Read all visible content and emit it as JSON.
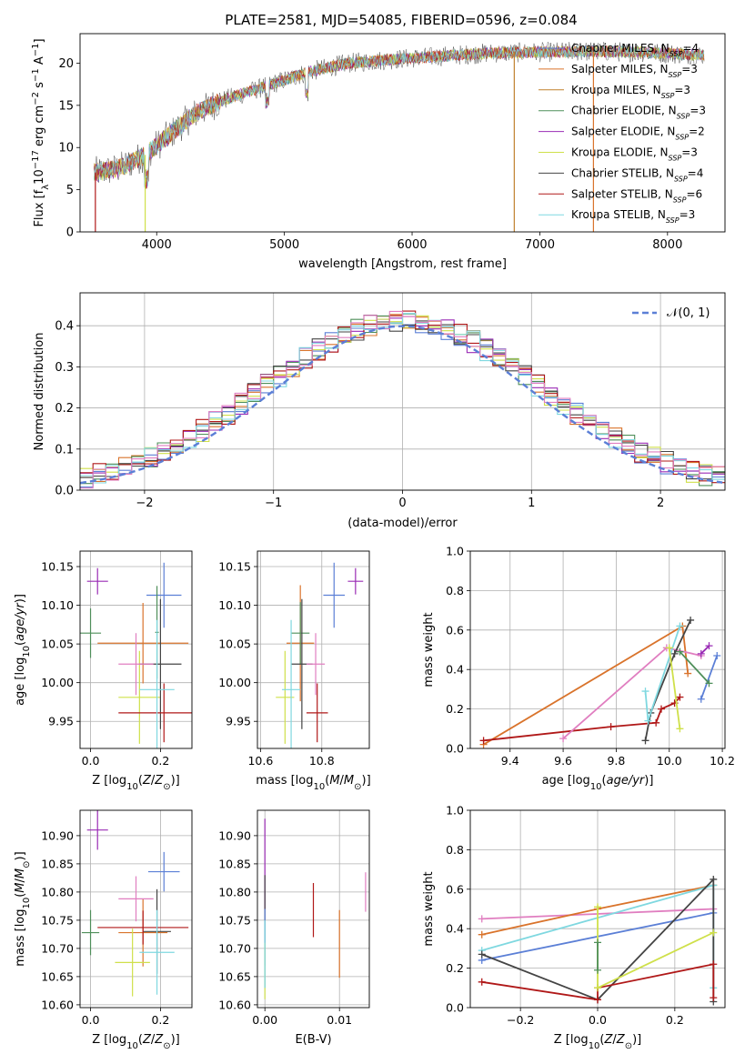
{
  "figure": {
    "title": "PLATE=2581, MJD=54085, FIBERID=0596, z=0.084"
  },
  "models": [
    {
      "label": "Chabrier MILES, N",
      "sub": "SSP",
      "suffix": "=4",
      "color": "#5b7fd6"
    },
    {
      "label": "Salpeter MILES, N",
      "sub": "SSP",
      "suffix": "=3",
      "color": "#d9732b"
    },
    {
      "label": "Kroupa MILES, N",
      "sub": "SSP",
      "suffix": "=3",
      "color": "#c0802c"
    },
    {
      "label": "Chabrier ELODIE, N",
      "sub": "SSP",
      "suffix": "=3",
      "color": "#4f8f5a"
    },
    {
      "label": "Salpeter ELODIE, N",
      "sub": "SSP",
      "suffix": "=2",
      "color": "#9a2bb5"
    },
    {
      "label": "Kroupa ELODIE, N",
      "sub": "SSP",
      "suffix": "=3",
      "color": "#cfe04a"
    },
    {
      "label": "Chabrier STELIB, N",
      "sub": "SSP",
      "suffix": "=4",
      "color": "#444444"
    },
    {
      "label": "Salpeter STELIB, N",
      "sub": "SSP",
      "suffix": "=6",
      "color": "#b01818"
    },
    {
      "label": "Kroupa STELIB, N",
      "sub": "SSP",
      "suffix": "=3",
      "color": "#7fd8e0"
    }
  ],
  "extra_colors": {
    "pink": "#e07ec0",
    "orange": "#e07b1c",
    "gray": "#777777"
  },
  "chart_data": [
    {
      "type": "line",
      "panel": "spectrum",
      "xlabel": "wavelength [Angstrom, rest frame]",
      "ylabel": "Flux [fλ10⁻¹⁷ erg cm⁻² s⁻¹ A⁻¹]",
      "xlim": [
        3400,
        8450
      ],
      "ylim": [
        0,
        23.5
      ],
      "xticks": [
        4000,
        5000,
        6000,
        7000,
        8000
      ],
      "yticks": [
        0,
        5,
        10,
        15,
        20
      ],
      "continuum_nodes": [
        [
          3500,
          7
        ],
        [
          3700,
          7.5
        ],
        [
          3900,
          9
        ],
        [
          4100,
          11.5
        ],
        [
          4300,
          14
        ],
        [
          4500,
          15.5
        ],
        [
          4800,
          17
        ],
        [
          5000,
          18
        ],
        [
          5200,
          19
        ],
        [
          5500,
          20
        ],
        [
          5900,
          20.5
        ],
        [
          6200,
          20.8
        ],
        [
          6600,
          21.2
        ],
        [
          7000,
          21.3
        ],
        [
          7400,
          21.4
        ],
        [
          7800,
          21.3
        ],
        [
          8200,
          21
        ]
      ],
      "vertical_drops": [
        {
          "x": 3520,
          "color_index": 7
        },
        {
          "x": 3910,
          "color_index": 5
        },
        {
          "x": 6800,
          "color_index": 2
        },
        {
          "x": 7420,
          "color_index": 1
        }
      ]
    },
    {
      "type": "histogram",
      "panel": "residuals",
      "xlabel": "(data-model)/error",
      "ylabel": "Normed distribution",
      "xlim": [
        -2.5,
        2.5
      ],
      "ylim": [
        0,
        0.48
      ],
      "xticks": [
        -2,
        -1,
        0,
        1,
        2
      ],
      "yticks": [
        0.0,
        0.1,
        0.2,
        0.3,
        0.4
      ],
      "bin_width": 0.1,
      "reference_curve": {
        "label": "N(0,1)",
        "mean": 0,
        "sigma": 1
      }
    },
    {
      "type": "scatter",
      "panel": "age-vs-Z",
      "xlabel": "Z [log10(Z/Z⊙)]",
      "ylabel": "age [log10(age/yr)]",
      "xlim": [
        -0.03,
        0.29
      ],
      "ylim": [
        9.915,
        10.17
      ],
      "xticks": [
        0.0,
        0.2
      ],
      "yticks": [
        9.95,
        10.0,
        10.05,
        10.1,
        10.15
      ],
      "points": [
        {
          "x": 0.21,
          "y": 10.113,
          "xerr": 0.05,
          "yerr": 0.042,
          "c": 0
        },
        {
          "x": 0.15,
          "y": 10.051,
          "xerr": 0.13,
          "yerr": 0.052,
          "c": 1
        },
        {
          "x": 0.19,
          "y": 10.065,
          "xerr": 0.005,
          "yerr": 0.06,
          "c": 3
        },
        {
          "x": 0.0,
          "y": 10.064,
          "xerr": 0.03,
          "yerr": 0.032,
          "c": 3
        },
        {
          "x": 0.02,
          "y": 10.131,
          "xerr": 0.03,
          "yerr": 0.017,
          "c": 4
        },
        {
          "x": 0.14,
          "y": 9.981,
          "xerr": 0.06,
          "yerr": 0.06,
          "c": 5
        },
        {
          "x": 0.2,
          "y": 10.024,
          "xerr": 0.06,
          "yerr": 0.084,
          "c": 6
        },
        {
          "x": 0.21,
          "y": 9.961,
          "xerr": 0.13,
          "yerr": 0.038,
          "c": 7
        },
        {
          "x": 0.19,
          "y": 9.991,
          "xerr": 0.05,
          "yerr": 0.09,
          "c": 8
        },
        {
          "x": 0.13,
          "y": 10.024,
          "xerr": 0.05,
          "yerr": 0.04,
          "c": 9
        }
      ]
    },
    {
      "type": "scatter",
      "panel": "age-vs-mass",
      "xlabel": "mass [log10(M/M⊙)]",
      "ylabel": "",
      "xlim": [
        10.59,
        10.955
      ],
      "ylim": [
        9.915,
        10.17
      ],
      "xticks": [
        10.6,
        10.8
      ],
      "yticks": [
        9.95,
        10.0,
        10.05,
        10.1,
        10.15
      ],
      "points": [
        {
          "x": 10.84,
          "y": 10.113,
          "xerr": 0.035,
          "yerr": 0.042,
          "c": 0
        },
        {
          "x": 10.73,
          "y": 10.051,
          "xerr": 0.045,
          "yerr": 0.075,
          "c": 1
        },
        {
          "x": 10.73,
          "y": 10.064,
          "xerr": 0.03,
          "yerr": 0.04,
          "c": 3
        },
        {
          "x": 10.91,
          "y": 10.131,
          "xerr": 0.025,
          "yerr": 0.017,
          "c": 4
        },
        {
          "x": 10.68,
          "y": 9.981,
          "xerr": 0.03,
          "yerr": 0.06,
          "c": 5
        },
        {
          "x": 10.735,
          "y": 10.024,
          "xerr": 0.035,
          "yerr": 0.084,
          "c": 6
        },
        {
          "x": 10.785,
          "y": 9.961,
          "xerr": 0.035,
          "yerr": 0.038,
          "c": 7
        },
        {
          "x": 10.7,
          "y": 9.991,
          "xerr": 0.03,
          "yerr": 0.09,
          "c": 8
        },
        {
          "x": 10.78,
          "y": 10.024,
          "xerr": 0.03,
          "yerr": 0.04,
          "c": 9
        }
      ]
    },
    {
      "type": "line",
      "panel": "weight-vs-age",
      "xlabel": "age [log10(age/yr)]",
      "ylabel": "mass weight",
      "xlim": [
        9.25,
        10.21
      ],
      "ylim": [
        0,
        1
      ],
      "xticks": [
        9.4,
        9.6,
        9.8,
        10.0,
        10.2
      ],
      "yticks": [
        0.0,
        0.2,
        0.4,
        0.6,
        0.8,
        1.0
      ],
      "series": [
        {
          "c": 1,
          "points": [
            [
              9.3,
              0.02
            ],
            [
              10.05,
              0.62
            ],
            [
              10.07,
              0.38
            ]
          ]
        },
        {
          "c": 7,
          "points": [
            [
              9.3,
              0.04
            ],
            [
              9.78,
              0.11
            ],
            [
              9.95,
              0.13
            ],
            [
              9.97,
              0.2
            ],
            [
              10.02,
              0.23
            ],
            [
              10.04,
              0.26
            ]
          ]
        },
        {
          "c": 9,
          "points": [
            [
              9.6,
              0.05
            ],
            [
              9.99,
              0.51
            ],
            [
              10.12,
              0.47
            ]
          ]
        },
        {
          "c": 6,
          "points": [
            [
              9.91,
              0.04
            ],
            [
              9.93,
              0.18
            ],
            [
              10.02,
              0.48
            ],
            [
              10.08,
              0.65
            ]
          ]
        },
        {
          "c": 8,
          "points": [
            [
              9.91,
              0.29
            ],
            [
              9.92,
              0.14
            ],
            [
              10.04,
              0.62
            ]
          ]
        },
        {
          "c": 0,
          "points": [
            [
              10.12,
              0.25
            ],
            [
              10.18,
              0.47
            ]
          ]
        },
        {
          "c": 3,
          "points": [
            [
              10.04,
              0.49
            ],
            [
              10.15,
              0.33
            ]
          ]
        },
        {
          "c": 4,
          "points": [
            [
              10.12,
              0.48
            ],
            [
              10.15,
              0.52
            ]
          ]
        },
        {
          "c": 5,
          "points": [
            [
              10.0,
              0.51
            ],
            [
              10.04,
              0.1
            ]
          ]
        }
      ]
    },
    {
      "type": "scatter",
      "panel": "mass-vs-Z",
      "xlabel": "Z [log10(Z/Z⊙)]",
      "ylabel": "mass [log10(M/M⊙)]",
      "xlim": [
        -0.03,
        0.29
      ],
      "ylim": [
        10.595,
        10.945
      ],
      "xticks": [
        0.0,
        0.2
      ],
      "yticks": [
        10.6,
        10.65,
        10.7,
        10.75,
        10.8,
        10.85,
        10.9
      ],
      "points": [
        {
          "x": 0.21,
          "y": 10.836,
          "xerr": 0.045,
          "yerr": 0.035,
          "c": 0
        },
        {
          "x": 0.15,
          "y": 10.728,
          "xerr": 0.07,
          "yerr": 0.06,
          "c": 1
        },
        {
          "x": 0.0,
          "y": 10.728,
          "xerr": 0.025,
          "yerr": 0.04,
          "c": 3
        },
        {
          "x": 0.02,
          "y": 10.91,
          "xerr": 0.03,
          "yerr": 0.035,
          "c": 4
        },
        {
          "x": 0.12,
          "y": 10.675,
          "xerr": 0.05,
          "yerr": 0.06,
          "c": 5
        },
        {
          "x": 0.19,
          "y": 10.73,
          "xerr": 0.04,
          "yerr": 0.075,
          "c": 6
        },
        {
          "x": 0.15,
          "y": 10.737,
          "xerr": 0.13,
          "yerr": 0.03,
          "c": 7
        },
        {
          "x": 0.19,
          "y": 10.693,
          "xerr": 0.05,
          "yerr": 0.075,
          "c": 8
        },
        {
          "x": 0.13,
          "y": 10.788,
          "xerr": 0.05,
          "yerr": 0.04,
          "c": 9
        }
      ]
    },
    {
      "type": "scatter",
      "panel": "mass-vs-EBV",
      "xlabel": "E(B-V)",
      "ylabel": "",
      "xlim": [
        -0.001,
        0.014
      ],
      "ylim": [
        10.595,
        10.945
      ],
      "xticks": [
        0.0,
        0.01
      ],
      "yticks": [
        10.6,
        10.65,
        10.7,
        10.75,
        10.8,
        10.85,
        10.9
      ],
      "points": [
        {
          "x": 0.0,
          "y": 10.85,
          "xerr": 0,
          "yerr": 0.08,
          "c": 4
        },
        {
          "x": 0.0,
          "y": 10.75,
          "xerr": 0,
          "yerr": 0.08,
          "c": 6
        },
        {
          "x": 0.0,
          "y": 10.7,
          "xerr": 0,
          "yerr": 0.07,
          "c": 0
        },
        {
          "x": 0.0,
          "y": 10.66,
          "xerr": 0,
          "yerr": 0.05,
          "c": 5
        },
        {
          "x": 0.0,
          "y": 10.69,
          "xerr": 0,
          "yerr": 0.06,
          "c": 8
        },
        {
          "x": 0.0065,
          "y": 10.768,
          "xerr": 0,
          "yerr": 0.048,
          "c": 7
        },
        {
          "x": 0.01,
          "y": 10.708,
          "xerr": 0,
          "yerr": 0.06,
          "c": 1
        },
        {
          "x": 0.0135,
          "y": 10.8,
          "xerr": 0,
          "yerr": 0.035,
          "c": 9
        }
      ]
    },
    {
      "type": "line",
      "panel": "weight-vs-Z",
      "xlabel": "Z [log10(Z/Z⊙)]",
      "ylabel": "mass weight",
      "xlim": [
        -0.33,
        0.33
      ],
      "ylim": [
        0,
        1
      ],
      "xticks": [
        -0.2,
        0.0,
        0.2
      ],
      "yticks": [
        0.0,
        0.2,
        0.4,
        0.6,
        0.8,
        1.0
      ],
      "series": [
        {
          "c": 9,
          "points": [
            [
              -0.3,
              0.45
            ],
            [
              0.3,
              0.5
            ]
          ]
        },
        {
          "c": 1,
          "points": [
            [
              -0.3,
              0.37
            ],
            [
              0.0,
              0.5
            ],
            [
              0.3,
              0.62
            ]
          ]
        },
        {
          "c": 0,
          "points": [
            [
              -0.3,
              0.24
            ],
            [
              0.3,
              0.48
            ]
          ]
        },
        {
          "c": 8,
          "points": [
            [
              -0.3,
              0.29
            ],
            [
              0.3,
              0.62
            ],
            [
              0.3,
              0.1
            ]
          ]
        },
        {
          "c": 6,
          "points": [
            [
              -0.3,
              0.27
            ],
            [
              0.0,
              0.04
            ],
            [
              0.3,
              0.65
            ],
            [
              0.3,
              0.03
            ]
          ]
        },
        {
          "c": 7,
          "points": [
            [
              -0.3,
              0.13
            ],
            [
              0.0,
              0.04
            ],
            [
              0.0,
              0.1
            ],
            [
              0.3,
              0.22
            ],
            [
              0.3,
              0.05
            ]
          ]
        },
        {
          "c": 5,
          "points": [
            [
              0.0,
              0.51
            ],
            [
              0.0,
              0.1
            ],
            [
              0.3,
              0.38
            ]
          ]
        },
        {
          "c": 3,
          "points": [
            [
              0.0,
              0.33
            ],
            [
              0.0,
              0.19
            ]
          ]
        }
      ]
    }
  ]
}
